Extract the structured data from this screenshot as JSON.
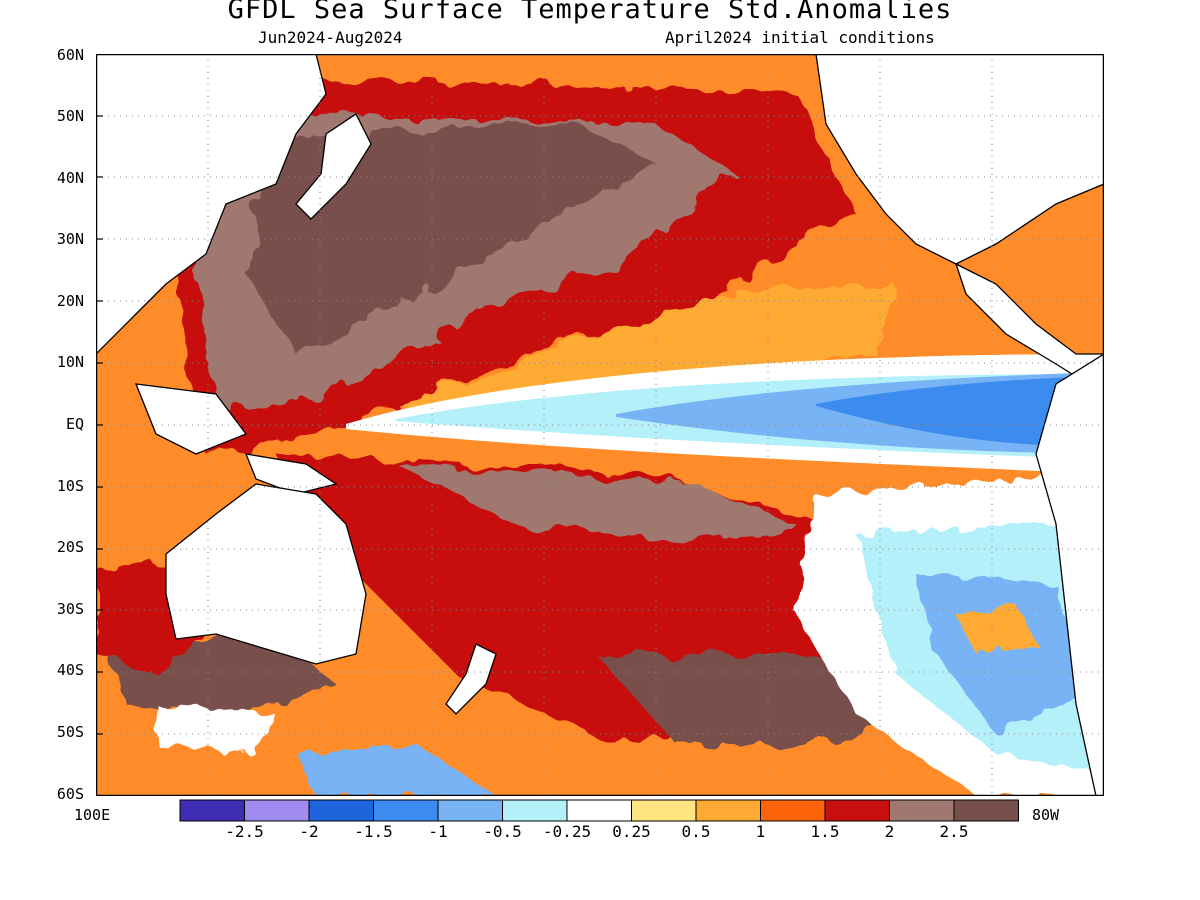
{
  "header": {
    "title": "GFDL Sea Surface Temperature Std.Anomalies",
    "subtitle_left": "Jun2024-Aug2024",
    "subtitle_right": "April2024 initial conditions"
  },
  "axes": {
    "lat_labels": [
      "60N",
      "50N",
      "40N",
      "30N",
      "20N",
      "10N",
      "EQ",
      "10S",
      "20S",
      "30S",
      "40S",
      "50S",
      "60S"
    ],
    "lon_left": "100E",
    "lon_right": "80W",
    "lat_range": [
      -60,
      60
    ],
    "lon_range_degE": [
      100,
      280
    ],
    "grid": "dotted"
  },
  "colorbar": {
    "levels": [
      "-2.5",
      "-2",
      "-1.5",
      "-1",
      "-0.5",
      "-0.25",
      "0.25",
      "0.5",
      "1",
      "1.5",
      "2",
      "2.5"
    ],
    "colors": [
      "#3f2db4",
      "#a08cf0",
      "#1e64dc",
      "#3c8cf0",
      "#78b4f5",
      "#b4f0fa",
      "#ffffff",
      "#ffe682",
      "#ffaa32",
      "#ff640a",
      "#c80f0f",
      "#a07870",
      "#78504b"
    ]
  },
  "map_colors": {
    "ocean_fill": "#ff8c28",
    "land": "#ffffff",
    "coast": "#000000"
  }
}
